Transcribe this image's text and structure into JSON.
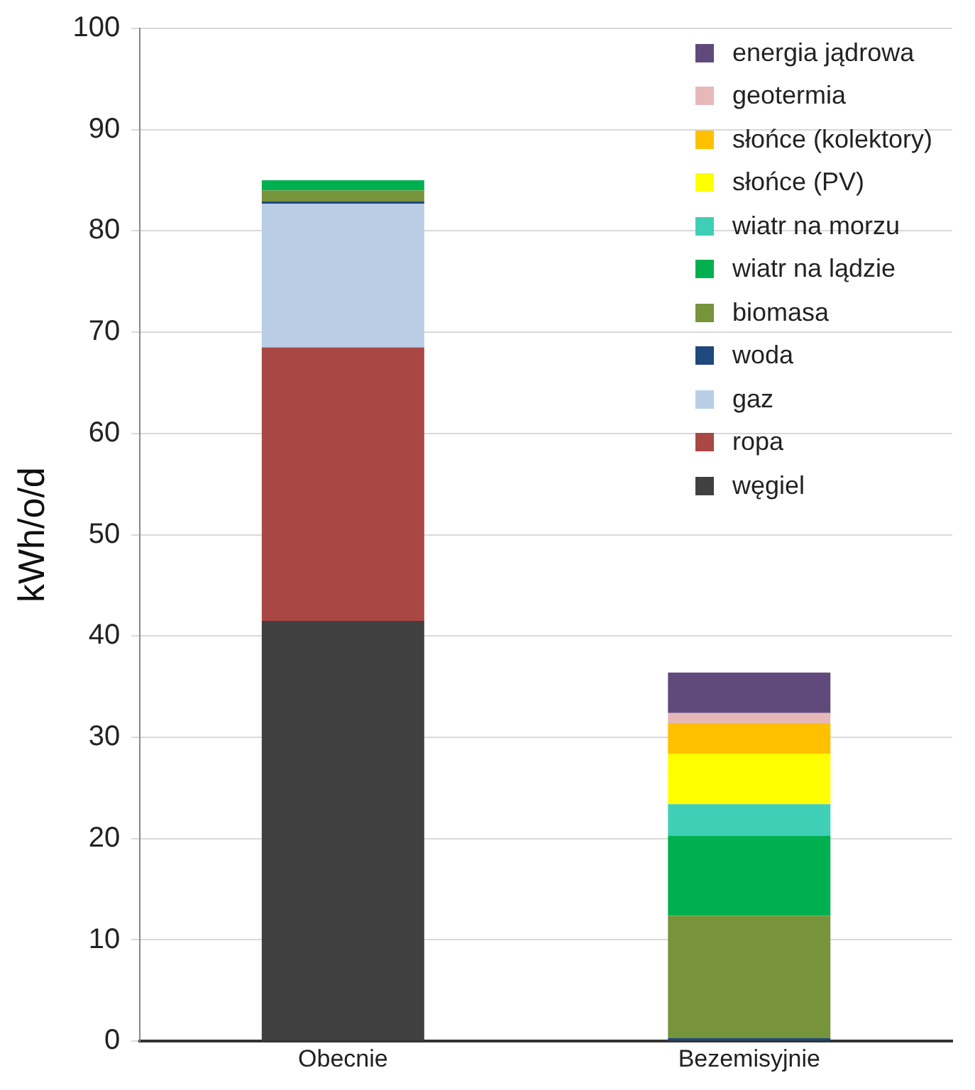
{
  "chart_data": {
    "type": "bar",
    "stacked": true,
    "ylabel": "kWh/o/d",
    "categories": [
      "Obecnie",
      "Bezemisyjnie"
    ],
    "series": [
      {
        "name": "węgiel",
        "color": "#404040",
        "values": [
          41.5,
          0
        ]
      },
      {
        "name": "ropa",
        "color": "#a94744",
        "values": [
          27.0,
          0
        ]
      },
      {
        "name": "gaz",
        "color": "#b9cde5",
        "values": [
          14.2,
          0
        ]
      },
      {
        "name": "woda",
        "color": "#1f497d",
        "values": [
          0.2,
          0.3
        ]
      },
      {
        "name": "biomasa",
        "color": "#77933c",
        "values": [
          1.1,
          12.1
        ]
      },
      {
        "name": "wiatr na lądzie",
        "color": "#00b050",
        "values": [
          1.0,
          7.9
        ]
      },
      {
        "name": "wiatr na morzu",
        "color": "#3fcfb6",
        "values": [
          0,
          3.1
        ]
      },
      {
        "name": "słońce (PV)",
        "color": "#ffff00",
        "values": [
          0,
          5.0
        ]
      },
      {
        "name": "słońce (kolektory)",
        "color": "#ffc000",
        "values": [
          0,
          3.0
        ]
      },
      {
        "name": "geotermia",
        "color": "#e6b9b8",
        "values": [
          0,
          1.0
        ]
      },
      {
        "name": "energia jądrowa",
        "color": "#604a7b",
        "values": [
          0,
          4.0
        ]
      }
    ],
    "ylim": [
      0,
      100
    ],
    "yticks": [
      0,
      10,
      20,
      30,
      40,
      50,
      60,
      70,
      80,
      90,
      100
    ],
    "grid": "y",
    "legend": "top right"
  }
}
